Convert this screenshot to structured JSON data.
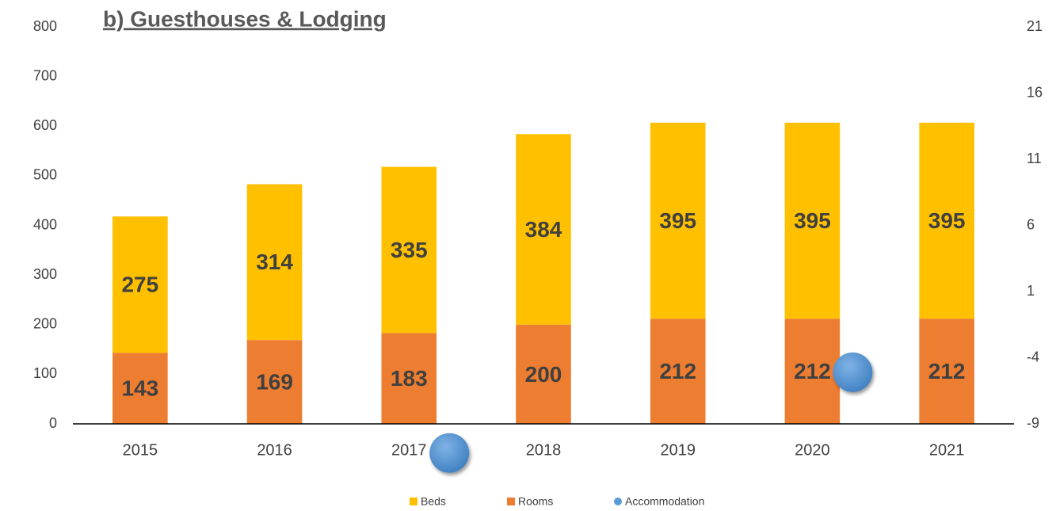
{
  "chart_data": {
    "type": "bar",
    "stacked": true,
    "title": "b) Guesthouses & Lodging",
    "categories": [
      "2015",
      "2016",
      "2017",
      "2018",
      "2019",
      "2020",
      "2021"
    ],
    "series": [
      {
        "name": "Rooms",
        "color": "#ED7D31",
        "values": [
          143,
          169,
          183,
          200,
          212,
          212,
          212
        ]
      },
      {
        "name": "Beds",
        "color": "#FFC000",
        "values": [
          275,
          314,
          335,
          384,
          395,
          395,
          395
        ]
      },
      {
        "name": "Accommodation",
        "type": "scatter",
        "axis": "y2",
        "color": "#5B9BD5",
        "x": [
          2017.3,
          2020.3
        ],
        "values": [
          -11.2,
          -5.1
        ]
      }
    ],
    "legend_order": [
      "Beds",
      "Rooms",
      "Accommodation"
    ],
    "xlim": [
      2014.5,
      2021.5
    ],
    "ylim": [
      0,
      800
    ],
    "yticks": [
      0,
      100,
      200,
      300,
      400,
      500,
      600,
      700,
      800
    ],
    "y2lim": [
      -9,
      21
    ],
    "y2ticks": [
      -9,
      -4,
      1,
      6,
      11,
      16,
      21
    ],
    "grid": false,
    "legend": "bottom"
  }
}
